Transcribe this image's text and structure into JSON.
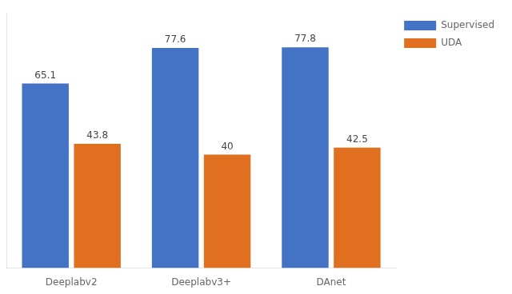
{
  "chart_data": {
    "type": "bar",
    "categories": [
      "Deeplabv2",
      "Deeplabv3+",
      "DAnet"
    ],
    "series": [
      {
        "name": "Supervised",
        "color": "#4472C4",
        "values": [
          65.1,
          77.6,
          77.8
        ]
      },
      {
        "name": "UDA",
        "color": "#E07020",
        "values": [
          43.8,
          40,
          42.5
        ]
      }
    ],
    "ylim": [
      0,
      90
    ],
    "tick_labels": "x",
    "data_labels": true,
    "grid": false,
    "legend": "upper right"
  }
}
